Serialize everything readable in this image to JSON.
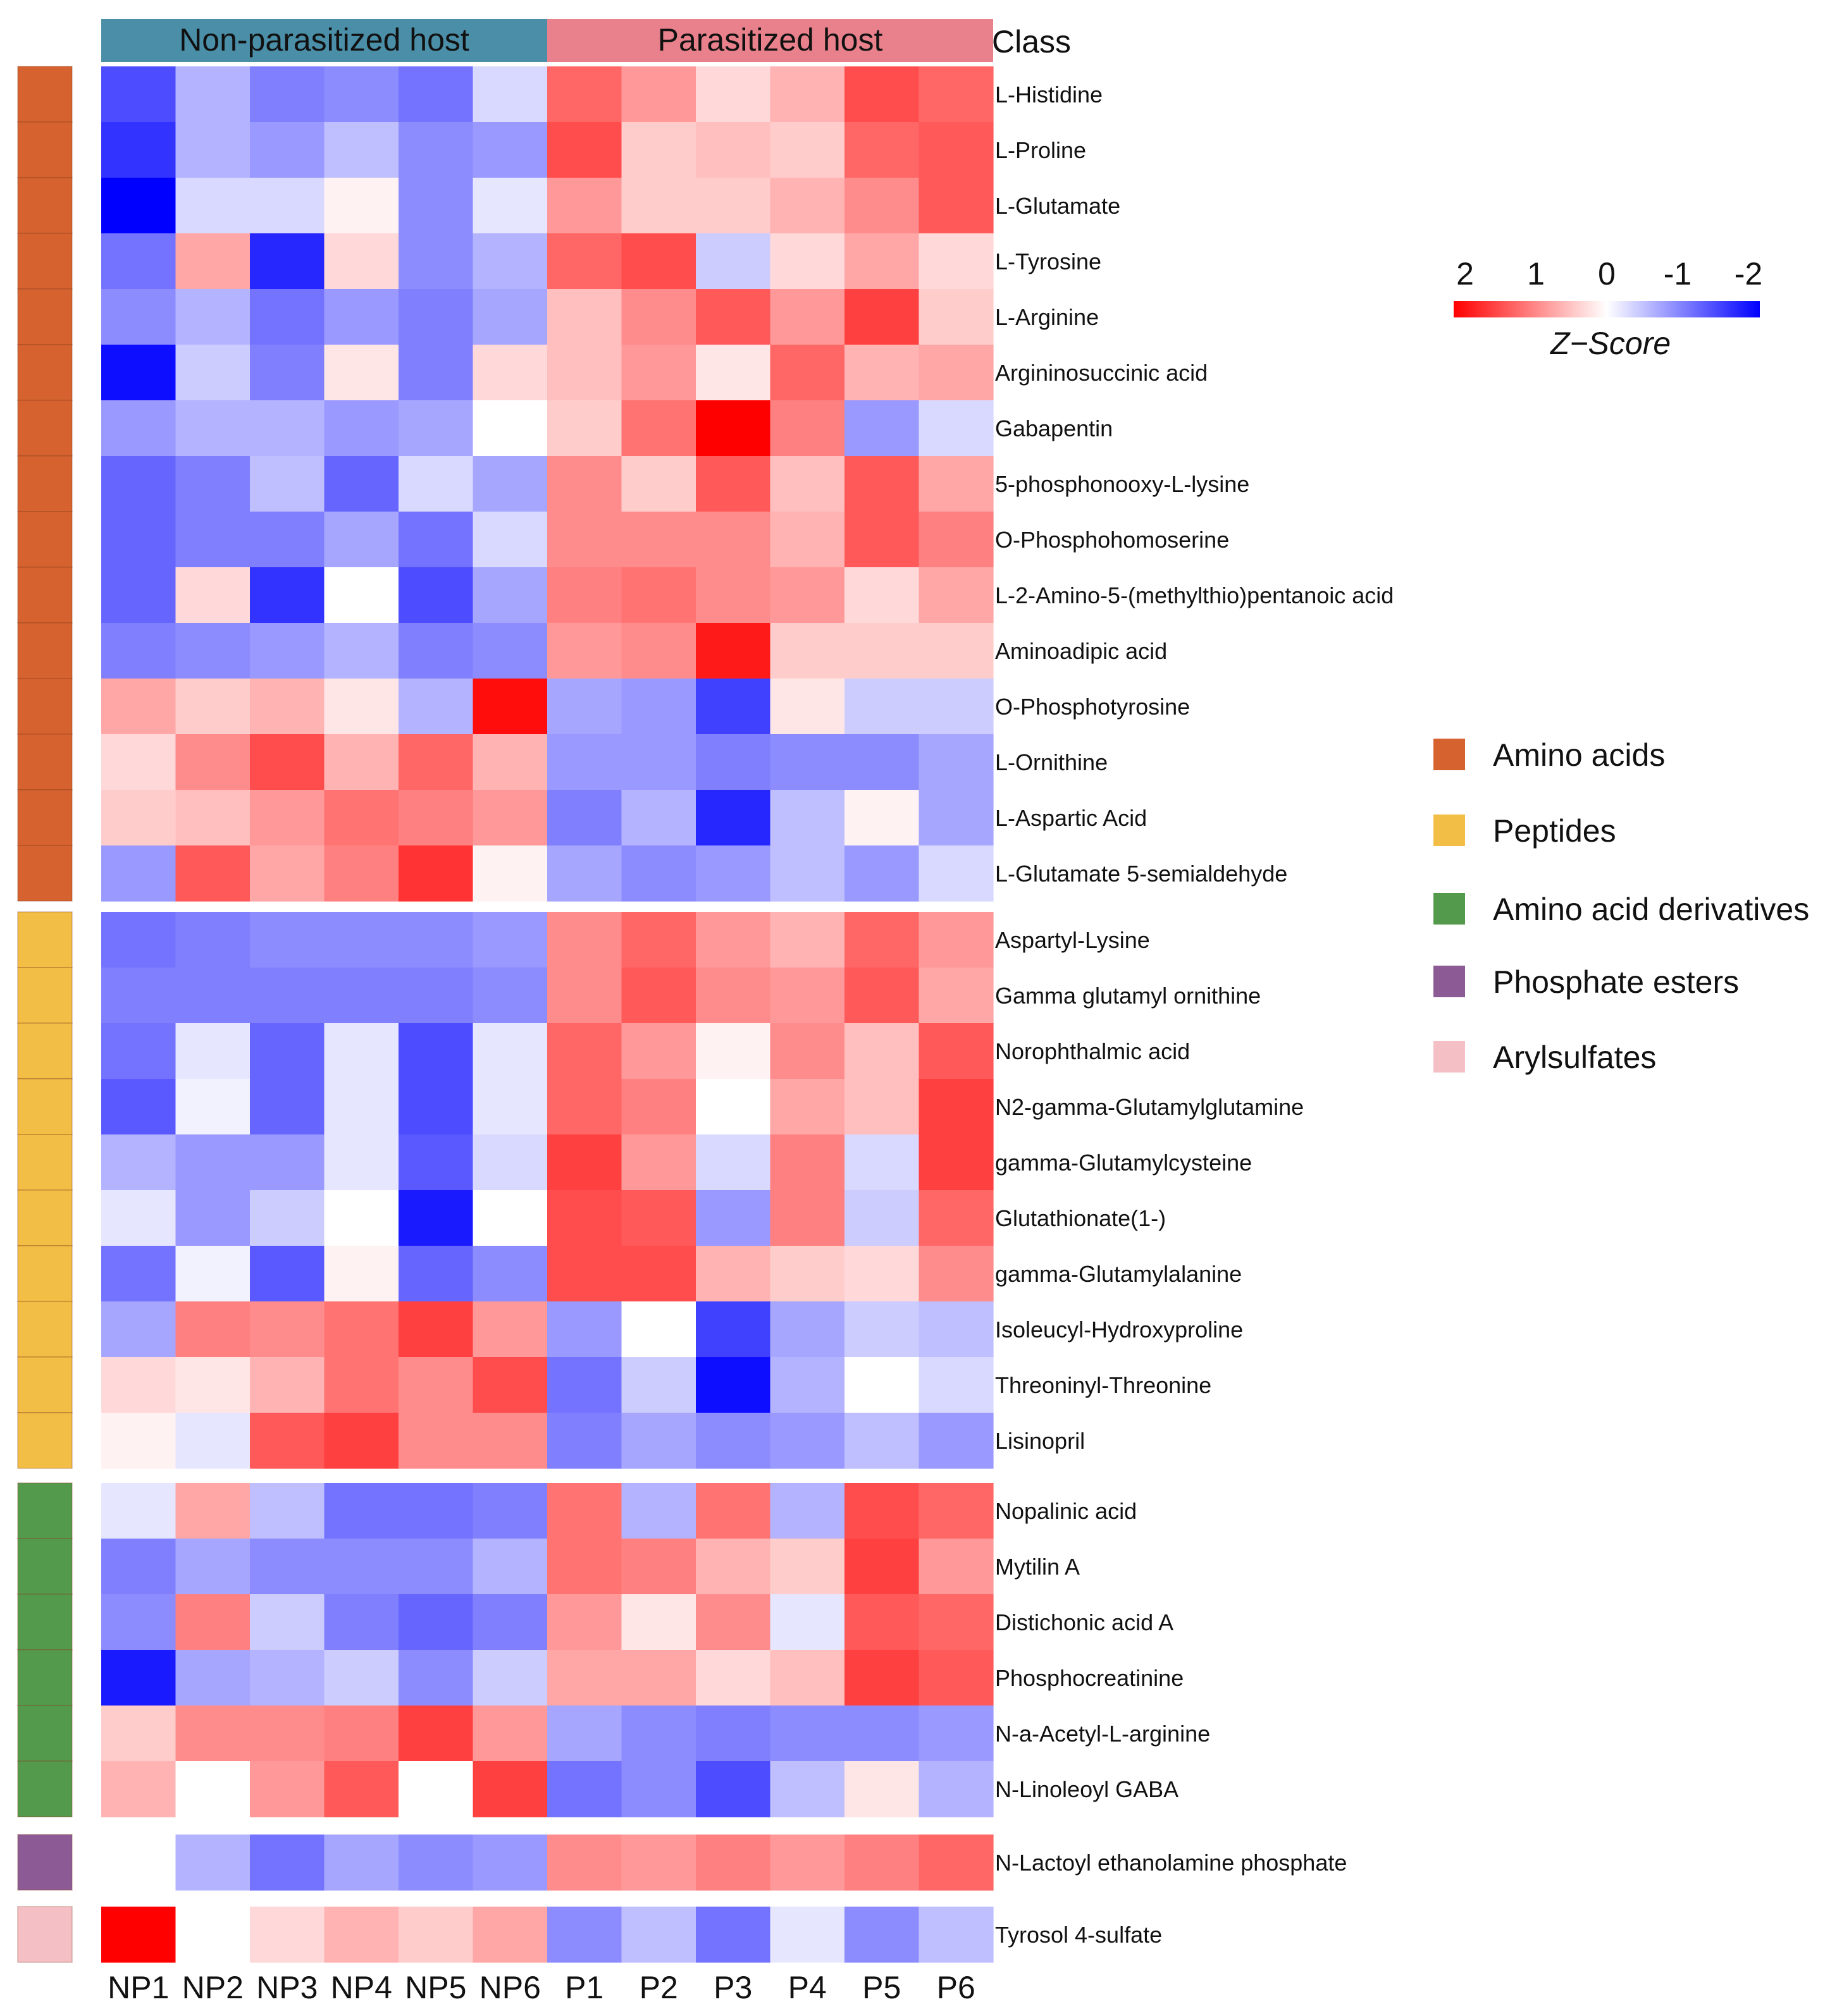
{
  "chart_data": {
    "type": "heatmap",
    "columns": [
      "NP1",
      "NP2",
      "NP3",
      "NP4",
      "NP5",
      "NP6",
      "P1",
      "P2",
      "P3",
      "P4",
      "P5",
      "P6"
    ],
    "column_groups": [
      {
        "label": "Non-parasitized host",
        "color": "#4a8ea8",
        "columns": 6
      },
      {
        "label": "Parasitized host",
        "color": "#e8818b",
        "columns": 6
      }
    ],
    "class_header": "Class",
    "classes": [
      {
        "name": "Amino acids",
        "color": "#d5622f"
      },
      {
        "name": "Peptides",
        "color": "#f2be45"
      },
      {
        "name": "Amino acid derivatives",
        "color": "#549a4d"
      },
      {
        "name": "Phosphate esters",
        "color": "#8c5b96"
      },
      {
        "name": "Arylsulfates",
        "color": "#f4c0c6"
      }
    ],
    "rows": [
      {
        "name": "L-Histidine",
        "class": 0,
        "values": [
          -1.4,
          -0.6,
          -1.0,
          -0.9,
          -1.1,
          -0.3,
          1.2,
          0.8,
          0.3,
          0.6,
          1.4,
          1.2
        ]
      },
      {
        "name": "L-Proline",
        "class": 0,
        "values": [
          -1.6,
          -0.6,
          -0.8,
          -0.5,
          -0.9,
          -0.8,
          1.4,
          0.4,
          0.5,
          0.4,
          1.2,
          1.3
        ]
      },
      {
        "name": "L-Glutamate",
        "class": 0,
        "values": [
          -2.0,
          -0.3,
          -0.3,
          0.1,
          -0.9,
          -0.2,
          0.8,
          0.4,
          0.4,
          0.6,
          0.9,
          1.3
        ]
      },
      {
        "name": "L-Tyrosine",
        "class": 0,
        "values": [
          -1.1,
          0.7,
          -1.7,
          0.3,
          -0.9,
          -0.6,
          1.2,
          1.4,
          -0.4,
          0.3,
          0.7,
          0.3
        ]
      },
      {
        "name": "L-Arginine",
        "class": 0,
        "values": [
          -0.9,
          -0.6,
          -1.1,
          -0.8,
          -1.0,
          -0.7,
          0.5,
          0.9,
          1.3,
          0.8,
          1.5,
          0.4
        ]
      },
      {
        "name": "Argininosuccinic acid",
        "class": 0,
        "values": [
          -1.9,
          -0.4,
          -1.0,
          0.2,
          -1.0,
          0.3,
          0.5,
          0.8,
          0.2,
          1.2,
          0.6,
          0.7
        ]
      },
      {
        "name": "Gabapentin",
        "class": 0,
        "values": [
          -0.8,
          -0.6,
          -0.6,
          -0.8,
          -0.7,
          0.0,
          0.4,
          1.1,
          2.0,
          1.0,
          -0.8,
          -0.3
        ]
      },
      {
        "name": "5-phosphonooxy-L-lysine",
        "class": 0,
        "values": [
          -1.2,
          -1.0,
          -0.5,
          -1.2,
          -0.3,
          -0.7,
          0.9,
          0.4,
          1.3,
          0.5,
          1.3,
          0.7
        ]
      },
      {
        "name": "O-Phosphohomoserine",
        "class": 0,
        "values": [
          -1.2,
          -1.0,
          -1.0,
          -0.7,
          -1.1,
          -0.3,
          0.9,
          0.9,
          0.9,
          0.6,
          1.3,
          1.0
        ]
      },
      {
        "name": "L-2-Amino-5-(methylthio)pentanoic acid",
        "class": 0,
        "values": [
          -1.2,
          0.3,
          -1.6,
          0.0,
          -1.4,
          -0.7,
          1.0,
          1.1,
          0.9,
          0.8,
          0.3,
          0.7
        ]
      },
      {
        "name": "Aminoadipic acid",
        "class": 0,
        "values": [
          -1.0,
          -0.9,
          -0.8,
          -0.6,
          -1.0,
          -0.9,
          0.8,
          0.9,
          1.8,
          0.4,
          0.4,
          0.4
        ]
      },
      {
        "name": "O-Phosphotyrosine",
        "class": 0,
        "values": [
          0.7,
          0.4,
          0.6,
          0.2,
          -0.6,
          1.9,
          -0.7,
          -0.8,
          -1.5,
          0.2,
          -0.4,
          -0.4
        ]
      },
      {
        "name": "L-Ornithine",
        "class": 0,
        "values": [
          0.3,
          0.9,
          1.4,
          0.6,
          1.2,
          0.6,
          -0.8,
          -0.8,
          -1.0,
          -0.9,
          -0.9,
          -0.7
        ]
      },
      {
        "name": "L-Aspartic Acid",
        "class": 0,
        "values": [
          0.4,
          0.5,
          0.8,
          1.1,
          1.0,
          0.8,
          -1.0,
          -0.6,
          -1.7,
          -0.5,
          0.1,
          -0.7
        ]
      },
      {
        "name": "L-Glutamate 5-semialdehyde",
        "class": 0,
        "values": [
          -0.8,
          1.3,
          0.7,
          1.0,
          1.6,
          0.1,
          -0.7,
          -0.9,
          -0.8,
          -0.5,
          -0.8,
          -0.3
        ]
      },
      {
        "name": "Aspartyl-Lysine",
        "class": 1,
        "values": [
          -1.1,
          -1.0,
          -0.9,
          -0.9,
          -0.9,
          -0.8,
          0.9,
          1.2,
          0.8,
          0.6,
          1.2,
          0.8
        ]
      },
      {
        "name": "Gamma glutamyl ornithine",
        "class": 1,
        "values": [
          -1.0,
          -1.0,
          -1.0,
          -1.0,
          -1.0,
          -0.9,
          0.9,
          1.3,
          0.9,
          0.8,
          1.3,
          0.7
        ]
      },
      {
        "name": "Norophthalmic acid",
        "class": 1,
        "values": [
          -1.1,
          -0.2,
          -1.2,
          -0.2,
          -1.4,
          -0.2,
          1.2,
          0.8,
          0.1,
          0.9,
          0.5,
          1.3
        ]
      },
      {
        "name": "N2-gamma-Glutamylglutamine",
        "class": 1,
        "values": [
          -1.3,
          -0.1,
          -1.2,
          -0.2,
          -1.4,
          -0.2,
          1.2,
          1.0,
          0.0,
          0.7,
          0.5,
          1.5
        ]
      },
      {
        "name": "gamma-Glutamylcysteine",
        "class": 1,
        "values": [
          -0.6,
          -0.8,
          -0.8,
          -0.2,
          -1.3,
          -0.3,
          1.5,
          0.8,
          -0.3,
          1.0,
          -0.3,
          1.5
        ]
      },
      {
        "name": "Glutathionate(1-)",
        "class": 1,
        "values": [
          -0.2,
          -0.8,
          -0.4,
          0.0,
          -1.8,
          0.0,
          1.4,
          1.3,
          -0.8,
          1.0,
          -0.4,
          1.2
        ]
      },
      {
        "name": "gamma-Glutamylalanine",
        "class": 1,
        "values": [
          -1.1,
          -0.1,
          -1.3,
          0.1,
          -1.2,
          -0.9,
          1.4,
          1.4,
          0.6,
          0.4,
          0.3,
          0.9
        ]
      },
      {
        "name": "Isoleucyl-Hydroxyproline",
        "class": 1,
        "values": [
          -0.7,
          1.0,
          0.9,
          1.1,
          1.5,
          0.8,
          -0.8,
          0.0,
          -1.5,
          -0.7,
          -0.4,
          -0.5
        ]
      },
      {
        "name": "Threoninyl-Threonine",
        "class": 1,
        "values": [
          0.3,
          0.2,
          0.6,
          1.1,
          0.9,
          1.4,
          -1.1,
          -0.4,
          -1.9,
          -0.6,
          0.0,
          -0.3
        ]
      },
      {
        "name": "Lisinopril",
        "class": 1,
        "values": [
          0.1,
          -0.2,
          1.3,
          1.5,
          0.9,
          0.9,
          -1.0,
          -0.7,
          -0.9,
          -0.8,
          -0.5,
          -0.8
        ]
      },
      {
        "name": "Nopalinic acid",
        "class": 2,
        "values": [
          -0.2,
          0.7,
          -0.5,
          -1.1,
          -1.1,
          -1.0,
          1.1,
          -0.6,
          1.1,
          -0.6,
          1.4,
          1.2
        ]
      },
      {
        "name": "Mytilin A",
        "class": 2,
        "values": [
          -1.0,
          -0.7,
          -0.9,
          -0.9,
          -0.9,
          -0.6,
          1.1,
          1.0,
          0.6,
          0.4,
          1.5,
          0.8
        ]
      },
      {
        "name": "Distichonic acid A",
        "class": 2,
        "values": [
          -0.9,
          1.0,
          -0.4,
          -1.0,
          -1.2,
          -1.0,
          0.8,
          0.2,
          0.9,
          -0.2,
          1.3,
          1.2
        ]
      },
      {
        "name": "Phosphocreatinine",
        "class": 2,
        "values": [
          -1.8,
          -0.7,
          -0.6,
          -0.4,
          -0.9,
          -0.4,
          0.7,
          0.7,
          0.3,
          0.5,
          1.5,
          1.3
        ]
      },
      {
        "name": "N-a-Acetyl-L-arginine",
        "class": 2,
        "values": [
          0.4,
          0.9,
          0.9,
          1.0,
          1.5,
          0.8,
          -0.7,
          -0.9,
          -1.0,
          -0.9,
          -0.9,
          -0.8
        ]
      },
      {
        "name": "N-Linoleoyl GABA",
        "class": 2,
        "values": [
          0.6,
          0.0,
          0.8,
          1.3,
          0.0,
          1.5,
          -1.1,
          -0.9,
          -1.4,
          -0.5,
          0.2,
          -0.6
        ]
      },
      {
        "name": "N-Lactoyl ethanolamine phosphate",
        "class": 3,
        "values": [
          null,
          -0.6,
          -1.1,
          -0.7,
          -0.9,
          -0.8,
          0.9,
          0.8,
          1.0,
          0.8,
          1.0,
          1.2
        ]
      },
      {
        "name": "Tyrosol 4-sulfate",
        "class": 4,
        "values": [
          2.0,
          0.0,
          0.3,
          0.6,
          0.4,
          0.7,
          -0.9,
          -0.5,
          -1.1,
          -0.2,
          -0.9,
          -0.5
        ]
      }
    ],
    "color_scale": {
      "title": "Z−Score",
      "ticks": [
        "2",
        "1",
        "0",
        "-1",
        "-2"
      ],
      "range": [
        -2,
        2
      ],
      "high_color": "#ff0000",
      "mid_color": "#ffffff",
      "low_color": "#0000ff"
    }
  }
}
